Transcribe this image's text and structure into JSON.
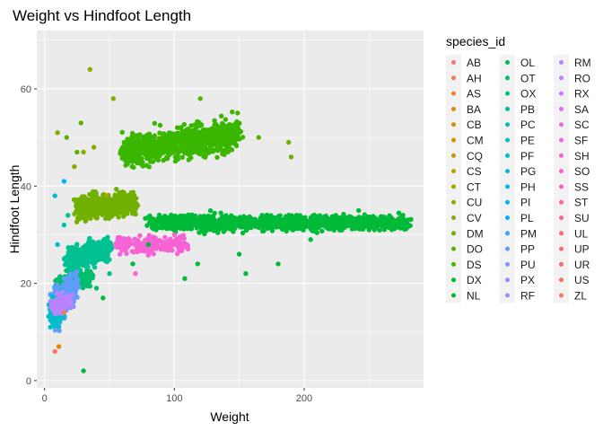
{
  "chart_data": {
    "type": "scatter",
    "title": "Weight vs Hindfoot Length",
    "xlabel": "Weight",
    "ylabel": "Hindfoot Length",
    "xlim": [
      -6,
      292
    ],
    "ylim": [
      -1.5,
      72
    ],
    "x_ticks": [
      0,
      100,
      200
    ],
    "y_ticks": [
      0,
      20,
      40,
      60
    ],
    "x_tick_labels": [
      "0",
      "100",
      "200"
    ],
    "y_tick_labels": [
      "0",
      "20",
      "40",
      "60"
    ],
    "grid": true,
    "legend": {
      "title": "species_id",
      "placement": "right",
      "entries": [
        {
          "label": "AB",
          "color": "#F8766D"
        },
        {
          "label": "AH",
          "color": "#F27D52"
        },
        {
          "label": "AS",
          "color": "#EA8331"
        },
        {
          "label": "BA",
          "color": "#E18A00"
        },
        {
          "label": "CB",
          "color": "#D89000"
        },
        {
          "label": "CM",
          "color": "#CD9600"
        },
        {
          "label": "CQ",
          "color": "#C19C00"
        },
        {
          "label": "CS",
          "color": "#B4A000"
        },
        {
          "label": "CT",
          "color": "#A5A500"
        },
        {
          "label": "CU",
          "color": "#96A800"
        },
        {
          "label": "CV",
          "color": "#85AD00"
        },
        {
          "label": "DM",
          "color": "#72B000"
        },
        {
          "label": "DO",
          "color": "#5BB300"
        },
        {
          "label": "DS",
          "color": "#39B600"
        },
        {
          "label": "DX",
          "color": "#00B81F"
        },
        {
          "label": "NL",
          "color": "#00BA38"
        },
        {
          "label": "OL",
          "color": "#00BC54"
        },
        {
          "label": "OT",
          "color": "#00BE6B"
        },
        {
          "label": "OX",
          "color": "#00C081"
        },
        {
          "label": "PB",
          "color": "#00C094"
        },
        {
          "label": "PC",
          "color": "#00C1A7"
        },
        {
          "label": "PE",
          "color": "#00C0B8"
        },
        {
          "label": "PF",
          "color": "#00BFC4"
        },
        {
          "label": "PG",
          "color": "#00BCD5"
        },
        {
          "label": "PH",
          "color": "#00B9E3"
        },
        {
          "label": "PI",
          "color": "#00B4EF"
        },
        {
          "label": "PL",
          "color": "#00AEFA"
        },
        {
          "label": "PM",
          "color": "#35A2FF"
        },
        {
          "label": "PP",
          "color": "#619CFF"
        },
        {
          "label": "PU",
          "color": "#7F96FF"
        },
        {
          "label": "PX",
          "color": "#9590FF"
        },
        {
          "label": "RF",
          "color": "#A58AFF"
        },
        {
          "label": "RM",
          "color": "#B983FF"
        },
        {
          "label": "RO",
          "color": "#C77CFF"
        },
        {
          "label": "RX",
          "color": "#D575FE"
        },
        {
          "label": "SA",
          "color": "#E16FF6"
        },
        {
          "label": "SC",
          "color": "#EA6AED"
        },
        {
          "label": "SF",
          "color": "#F166E3"
        },
        {
          "label": "SH",
          "color": "#F763D5"
        },
        {
          "label": "SO",
          "color": "#FB61C6"
        },
        {
          "label": "SS",
          "color": "#FD61B5"
        },
        {
          "label": "ST",
          "color": "#FF62A2"
        },
        {
          "label": "SU",
          "color": "#FF6590"
        },
        {
          "label": "UL",
          "color": "#FF677C"
        },
        {
          "label": "UP",
          "color": "#FB6A71"
        },
        {
          "label": "UR",
          "color": "#F96C6E"
        },
        {
          "label": "US",
          "color": "#F76F6D"
        },
        {
          "label": "ZL",
          "color": "#F8766D"
        }
      ]
    },
    "clusters": [
      {
        "species": "DS",
        "color": "#39B600",
        "x_range": [
          60,
          150
        ],
        "y_center": 49,
        "y_spread": 2.2,
        "count": 850,
        "y_slope": 0.04
      },
      {
        "species": "DM",
        "color": "#72B000",
        "x_range": [
          25,
          70
        ],
        "y_center": 36,
        "y_spread": 1.6,
        "count": 650,
        "y_slope": 0.02
      },
      {
        "species": "NL",
        "color": "#00BA38",
        "x_range": [
          80,
          280
        ],
        "y_center": 32.5,
        "y_spread": 1.1,
        "count": 1000,
        "y_slope": 0.0
      },
      {
        "species": "PB",
        "color": "#00C094",
        "x_range": [
          18,
          50
        ],
        "y_center": 26,
        "y_spread": 1.5,
        "count": 600,
        "y_slope": 0.08
      },
      {
        "species": "SH",
        "color": "#F763D5",
        "x_range": [
          55,
          110
        ],
        "y_center": 28,
        "y_spread": 1.2,
        "count": 180,
        "y_slope": 0.0
      },
      {
        "species": "OT",
        "color": "#00BE6B",
        "x_range": [
          10,
          35
        ],
        "y_center": 20.5,
        "y_spread": 1.0,
        "count": 350,
        "y_slope": 0.05
      },
      {
        "species": "PP",
        "color": "#619CFF",
        "x_range": [
          6,
          24
        ],
        "y_center": 17,
        "y_spread": 2.6,
        "count": 300,
        "y_slope": 0.25
      },
      {
        "species": "PF",
        "color": "#00BFC4",
        "x_range": [
          5,
          14
        ],
        "y_center": 14.5,
        "y_spread": 2.0,
        "count": 120,
        "y_slope": 0.2
      },
      {
        "species": "RM",
        "color": "#B983FF",
        "x_range": [
          6,
          20
        ],
        "y_center": 16,
        "y_spread": 1.2,
        "count": 160,
        "y_slope": 0.1
      }
    ],
    "outliers": [
      {
        "x": 35,
        "y": 64,
        "color": "#96A800"
      },
      {
        "x": 53,
        "y": 58,
        "color": "#85AD00"
      },
      {
        "x": 120,
        "y": 58,
        "color": "#5BB300"
      },
      {
        "x": 10,
        "y": 51,
        "color": "#85AD00"
      },
      {
        "x": 17,
        "y": 50,
        "color": "#5BB300"
      },
      {
        "x": 25,
        "y": 47,
        "color": "#5BB300"
      },
      {
        "x": 30,
        "y": 47,
        "color": "#85AD00"
      },
      {
        "x": 38,
        "y": 48,
        "color": "#85AD00"
      },
      {
        "x": 28,
        "y": 53,
        "color": "#5BB300"
      },
      {
        "x": 165,
        "y": 50,
        "color": "#5BB300"
      },
      {
        "x": 190,
        "y": 46,
        "color": "#72B000"
      },
      {
        "x": 188,
        "y": 49,
        "color": "#72B000"
      },
      {
        "x": 23,
        "y": 44,
        "color": "#85AD00"
      },
      {
        "x": 30,
        "y": 2,
        "color": "#00BA38"
      },
      {
        "x": 8,
        "y": 6,
        "color": "#F8766D"
      },
      {
        "x": 11,
        "y": 7,
        "color": "#E18A00"
      },
      {
        "x": 15,
        "y": 14,
        "color": "#F27D52"
      },
      {
        "x": 8,
        "y": 38,
        "color": "#00BFC4"
      },
      {
        "x": 15,
        "y": 41,
        "color": "#00B4EF"
      },
      {
        "x": 155,
        "y": 22,
        "color": "#00BA38"
      },
      {
        "x": 108,
        "y": 21,
        "color": "#00BA38"
      },
      {
        "x": 118,
        "y": 24,
        "color": "#00BA38"
      },
      {
        "x": 68,
        "y": 24,
        "color": "#00BA38"
      },
      {
        "x": 80,
        "y": 28,
        "color": "#00BA38"
      },
      {
        "x": 180,
        "y": 24,
        "color": "#00BA38"
      },
      {
        "x": 150,
        "y": 26,
        "color": "#00BA38"
      },
      {
        "x": 205,
        "y": 29,
        "color": "#00BA38"
      },
      {
        "x": 242,
        "y": 35,
        "color": "#00BA38"
      },
      {
        "x": 215,
        "y": 32,
        "color": "#00BA38"
      },
      {
        "x": 250,
        "y": 31,
        "color": "#00BA38"
      },
      {
        "x": 275,
        "y": 33,
        "color": "#00BA38"
      },
      {
        "x": 40,
        "y": 19,
        "color": "#00BE6B"
      },
      {
        "x": 50,
        "y": 22,
        "color": "#00C094"
      },
      {
        "x": 45,
        "y": 17,
        "color": "#00BA38"
      },
      {
        "x": 70,
        "y": 22,
        "color": "#F763D5"
      },
      {
        "x": 58,
        "y": 26,
        "color": "#F166E3"
      },
      {
        "x": 100,
        "y": 30,
        "color": "#F763D5"
      },
      {
        "x": 48,
        "y": 38,
        "color": "#A5A500"
      },
      {
        "x": 15,
        "y": 32,
        "color": "#00C1A7"
      },
      {
        "x": 10,
        "y": 28,
        "color": "#00BFC4"
      },
      {
        "x": 18,
        "y": 34,
        "color": "#00C094"
      }
    ]
  }
}
